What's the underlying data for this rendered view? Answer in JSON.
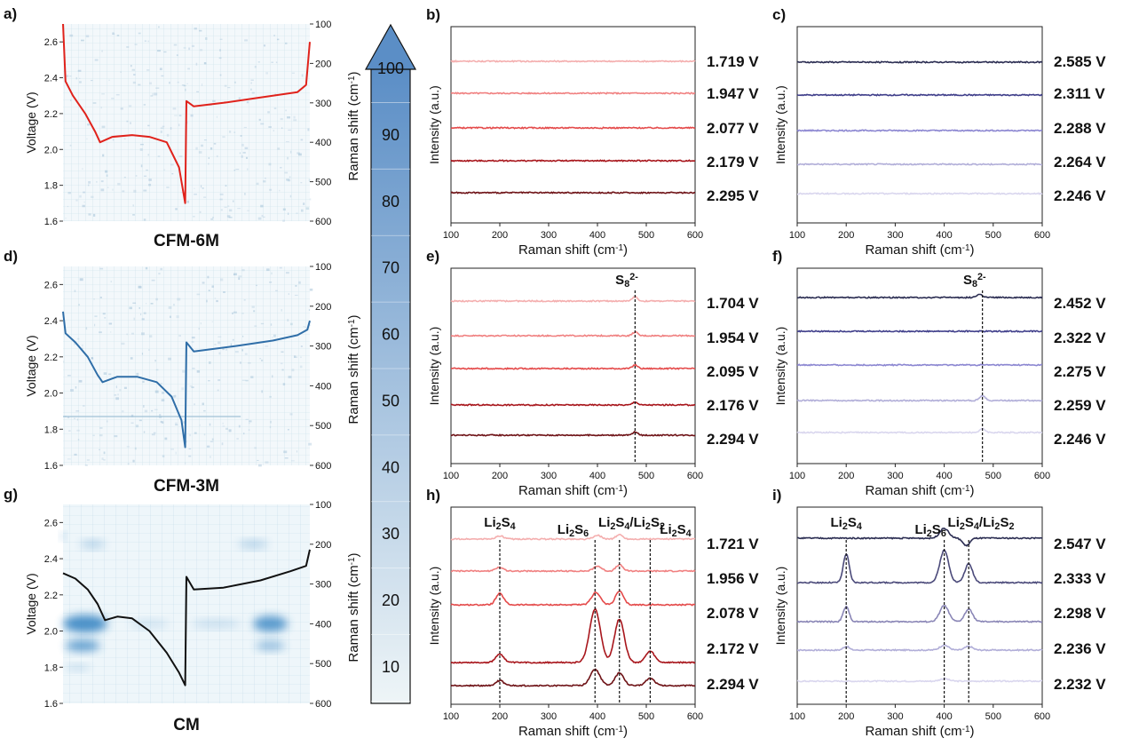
{
  "chart_data": [
    {
      "id": "a",
      "type": "heatmap+line",
      "panel_label": "a)",
      "caption": "CFM-6M",
      "ylabel": "Voltage (V)",
      "ylim": [
        1.6,
        2.7
      ],
      "yticks": [
        "1.6",
        "1.8",
        "2.0",
        "2.2",
        "2.4",
        "2.6"
      ],
      "y2label": "Raman shift (cm⁻¹)",
      "y2lim": [
        100,
        600
      ],
      "y2ticks": [
        "100",
        "200",
        "300",
        "400",
        "500",
        "600"
      ],
      "curve_color": "#e0221b",
      "voltage_curve": [
        [
          0,
          2.7
        ],
        [
          0.01,
          2.38
        ],
        [
          0.04,
          2.3
        ],
        [
          0.09,
          2.2
        ],
        [
          0.13,
          2.1
        ],
        [
          0.15,
          2.04
        ],
        [
          0.2,
          2.07
        ],
        [
          0.28,
          2.08
        ],
        [
          0.35,
          2.07
        ],
        [
          0.42,
          2.04
        ],
        [
          0.47,
          1.9
        ],
        [
          0.495,
          1.7
        ],
        [
          0.5,
          2.27
        ],
        [
          0.53,
          2.24
        ],
        [
          0.65,
          2.26
        ],
        [
          0.8,
          2.29
        ],
        [
          0.95,
          2.32
        ],
        [
          0.985,
          2.36
        ],
        [
          1.0,
          2.6
        ]
      ],
      "heat_spots": []
    },
    {
      "id": "d",
      "type": "heatmap+line",
      "panel_label": "d)",
      "caption": "CFM-3M",
      "ylabel": "Voltage (V)",
      "ylim": [
        1.6,
        2.7
      ],
      "yticks": [
        "1.6",
        "1.8",
        "2.0",
        "2.2",
        "2.4",
        "2.6"
      ],
      "y2label": "Raman shift (cm⁻¹)",
      "y2lim": [
        100,
        600
      ],
      "y2ticks": [
        "100",
        "200",
        "300",
        "400",
        "500",
        "600"
      ],
      "curve_color": "#2f6ea8",
      "voltage_curve": [
        [
          0,
          2.45
        ],
        [
          0.01,
          2.33
        ],
        [
          0.05,
          2.28
        ],
        [
          0.1,
          2.2
        ],
        [
          0.14,
          2.1
        ],
        [
          0.16,
          2.06
        ],
        [
          0.22,
          2.09
        ],
        [
          0.3,
          2.09
        ],
        [
          0.38,
          2.06
        ],
        [
          0.44,
          1.98
        ],
        [
          0.48,
          1.85
        ],
        [
          0.495,
          1.7
        ],
        [
          0.5,
          2.28
        ],
        [
          0.53,
          2.23
        ],
        [
          0.7,
          2.26
        ],
        [
          0.85,
          2.29
        ],
        [
          0.95,
          2.32
        ],
        [
          0.99,
          2.35
        ],
        [
          1.0,
          2.4
        ]
      ],
      "heat_spots": []
    },
    {
      "id": "g",
      "type": "heatmap+line",
      "panel_label": "g)",
      "caption": "CM",
      "ylabel": "Voltage (V)",
      "ylim": [
        1.6,
        2.7
      ],
      "yticks": [
        "1.6",
        "1.8",
        "2.0",
        "2.2",
        "2.4",
        "2.6"
      ],
      "y2label": "Raman shift (cm⁻¹)",
      "y2lim": [
        100,
        600
      ],
      "y2ticks": [
        "100",
        "200",
        "300",
        "400",
        "500",
        "600"
      ],
      "curve_color": "#111111",
      "voltage_curve": [
        [
          0,
          2.32
        ],
        [
          0.05,
          2.29
        ],
        [
          0.1,
          2.23
        ],
        [
          0.14,
          2.15
        ],
        [
          0.17,
          2.06
        ],
        [
          0.22,
          2.08
        ],
        [
          0.28,
          2.07
        ],
        [
          0.35,
          2.0
        ],
        [
          0.42,
          1.88
        ],
        [
          0.47,
          1.77
        ],
        [
          0.495,
          1.7
        ],
        [
          0.5,
          2.3
        ],
        [
          0.53,
          2.23
        ],
        [
          0.65,
          2.24
        ],
        [
          0.8,
          2.28
        ],
        [
          0.92,
          2.33
        ],
        [
          0.985,
          2.36
        ],
        [
          1.0,
          2.45
        ]
      ],
      "heat_spots": [
        [
          0.09,
          400,
          0.09,
          22,
          1.0
        ],
        [
          0.08,
          455,
          0.07,
          14,
          0.85
        ],
        [
          0.84,
          400,
          0.07,
          20,
          0.9
        ],
        [
          0.84,
          455,
          0.06,
          12,
          0.55
        ],
        [
          0.12,
          200,
          0.05,
          10,
          0.35
        ],
        [
          0.77,
          200,
          0.06,
          10,
          0.35
        ],
        [
          0.0,
          180,
          0.01,
          8,
          0.5
        ],
        [
          0.06,
          510,
          0.05,
          8,
          0.25
        ],
        [
          0.35,
          400,
          0.08,
          10,
          0.2
        ],
        [
          0.62,
          400,
          0.1,
          10,
          0.25
        ]
      ]
    },
    {
      "id": "arrow",
      "type": "colorbar",
      "values": [
        10,
        20,
        30,
        40,
        50,
        60,
        70,
        80,
        90,
        100
      ],
      "color_low": "#eef5f7",
      "color_high": "#5b8ec6"
    },
    {
      "id": "b",
      "type": "line",
      "panel_label": "b)",
      "xlabel": "Raman shift (cm⁻¹)",
      "ylabel": "Intensity (a.u.)",
      "xlim": [
        100,
        600
      ],
      "xticks": [
        "100",
        "200",
        "300",
        "400",
        "500",
        "600"
      ],
      "series": [
        {
          "name": "1.719 V",
          "color": "#f4aeae",
          "peaks": []
        },
        {
          "name": "1.947 V",
          "color": "#f08080",
          "peaks": []
        },
        {
          "name": "2.077 V",
          "color": "#e44a4a",
          "peaks": []
        },
        {
          "name": "2.179 V",
          "color": "#a8161c",
          "peaks": []
        },
        {
          "name": "2.295 V",
          "color": "#6e1216",
          "peaks": []
        }
      ],
      "annotations": []
    },
    {
      "id": "c",
      "type": "line",
      "panel_label": "c)",
      "xlabel": "Raman shift (cm⁻¹)",
      "ylabel": "Intensity (a.u.)",
      "xlim": [
        100,
        600
      ],
      "xticks": [
        "100",
        "200",
        "300",
        "400",
        "500",
        "600"
      ],
      "series": [
        {
          "name": "2.585 V",
          "color": "#2b2d52",
          "peaks": []
        },
        {
          "name": "2.311 V",
          "color": "#3f3e8a",
          "peaks": []
        },
        {
          "name": "2.288 V",
          "color": "#8b86d1",
          "peaks": []
        },
        {
          "name": "2.264 V",
          "color": "#b1aed8",
          "peaks": []
        },
        {
          "name": "2.246 V",
          "color": "#d9d6ee",
          "peaks": []
        }
      ],
      "annotations": []
    },
    {
      "id": "e",
      "type": "line",
      "panel_label": "e)",
      "xlabel": "Raman shift (cm⁻¹)",
      "ylabel": "Intensity (a.u.)",
      "xlim": [
        100,
        600
      ],
      "xticks": [
        "100",
        "200",
        "300",
        "400",
        "500",
        "600"
      ],
      "series": [
        {
          "name": "1.704 V",
          "color": "#f4aeae",
          "peaks": [
            [
              477,
              0.35,
              5
            ]
          ]
        },
        {
          "name": "1.954 V",
          "color": "#f08080",
          "peaks": [
            [
              477,
              0.3,
              5
            ]
          ]
        },
        {
          "name": "2.095 V",
          "color": "#e44a4a",
          "peaks": [
            [
              477,
              0.3,
              5
            ]
          ]
        },
        {
          "name": "2.176 V",
          "color": "#a8161c",
          "peaks": [
            [
              477,
              0.25,
              5
            ]
          ]
        },
        {
          "name": "2.294 V",
          "color": "#6e1216",
          "peaks": [
            [
              477,
              0.25,
              5
            ]
          ]
        }
      ],
      "annotations": [
        {
          "x": 477,
          "label": "S₈²⁻",
          "label_at": 460
        }
      ]
    },
    {
      "id": "f",
      "type": "line",
      "panel_label": "f)",
      "xlabel": "Raman shift (cm⁻¹)",
      "ylabel": "Intensity (a.u.)",
      "xlim": [
        100,
        600
      ],
      "xticks": [
        "100",
        "200",
        "300",
        "400",
        "500",
        "600"
      ],
      "series": [
        {
          "name": "2.452 V",
          "color": "#2b2d52",
          "peaks": [
            [
              472,
              0.25,
              6
            ]
          ]
        },
        {
          "name": "2.322 V",
          "color": "#3f3e8a",
          "peaks": []
        },
        {
          "name": "2.275 V",
          "color": "#8b86d1",
          "peaks": []
        },
        {
          "name": "2.259 V",
          "color": "#b1aed8",
          "peaks": [
            [
              478,
              0.4,
              6
            ]
          ]
        },
        {
          "name": "2.246 V",
          "color": "#d9d6ee",
          "peaks": [
            [
              478,
              0.3,
              6
            ]
          ]
        }
      ],
      "annotations": [
        {
          "x": 478,
          "label": "S₈²⁻",
          "label_at": 462
        }
      ]
    },
    {
      "id": "h",
      "type": "line",
      "panel_label": "h)",
      "xlabel": "Raman shift (cm⁻¹)",
      "ylabel": "Intensity (a.u.)",
      "xlim": [
        100,
        600
      ],
      "xticks": [
        "100",
        "200",
        "300",
        "400",
        "500",
        "600"
      ],
      "series": [
        {
          "name": "1.721 V",
          "color": "#f4aeae",
          "peaks": [
            [
              200,
              0.25,
              8
            ],
            [
              400,
              0.3,
              8
            ],
            [
              445,
              0.35,
              7
            ]
          ]
        },
        {
          "name": "1.956 V",
          "color": "#f08080",
          "peaks": [
            [
              200,
              0.3,
              8
            ],
            [
              400,
              0.4,
              8
            ],
            [
              445,
              0.5,
              7
            ]
          ]
        },
        {
          "name": "2.078 V",
          "color": "#e44a4a",
          "peaks": [
            [
              200,
              0.9,
              8
            ],
            [
              397,
              1.0,
              9
            ],
            [
              445,
              1.1,
              8
            ]
          ]
        },
        {
          "name": "2.172 V",
          "color": "#a8161c",
          "peaks": [
            [
              200,
              0.7,
              8
            ],
            [
              395,
              4.3,
              11
            ],
            [
              445,
              3.5,
              10
            ],
            [
              508,
              0.9,
              9
            ]
          ]
        },
        {
          "name": "2.294 V",
          "color": "#6e1216",
          "peaks": [
            [
              200,
              0.4,
              8
            ],
            [
              395,
              1.3,
              10
            ],
            [
              445,
              1.0,
              9
            ],
            [
              508,
              0.6,
              9
            ]
          ]
        }
      ],
      "annotations": [
        {
          "x": 200,
          "label": "Li₂S₄",
          "label_at": 200
        },
        {
          "x": 395,
          "label": "Li₂S₆",
          "label_at": 350
        },
        {
          "x": 445,
          "label": "Li₂S₄/Li₂S₂",
          "label_at": 470
        },
        {
          "x": 508,
          "label": "Li₂S₄",
          "label_at": 560
        }
      ]
    },
    {
      "id": "i",
      "type": "line",
      "panel_label": "i)",
      "xlabel": "Raman shift (cm⁻¹)",
      "ylabel": "Intensity (a.u.)",
      "xlim": [
        100,
        600
      ],
      "xticks": [
        "100",
        "200",
        "300",
        "400",
        "500",
        "600"
      ],
      "series": [
        {
          "name": "2.547 V",
          "color": "#2b2d52",
          "peaks": [
            [
              400,
              0.8,
              9
            ],
            [
              445,
              -0.6,
              7
            ]
          ]
        },
        {
          "name": "2.333 V",
          "color": "#4b4a7a",
          "peaks": [
            [
              200,
              2.3,
              6
            ],
            [
              400,
              2.6,
              9
            ],
            [
              450,
              1.5,
              8
            ]
          ]
        },
        {
          "name": "2.298 V",
          "color": "#8a86b6",
          "peaks": [
            [
              200,
              1.2,
              6
            ],
            [
              400,
              1.3,
              9
            ],
            [
              450,
              1.0,
              8
            ]
          ]
        },
        {
          "name": "2.236 V",
          "color": "#b1aed8",
          "peaks": [
            [
              200,
              0.3,
              6
            ],
            [
              400,
              0.4,
              9
            ],
            [
              450,
              0.3,
              8
            ]
          ]
        },
        {
          "name": "2.232 V",
          "color": "#d9d6ee",
          "peaks": [
            [
              400,
              0.2,
              9
            ]
          ]
        }
      ],
      "annotations": [
        {
          "x": 200,
          "label": "Li₂S₄",
          "label_at": 200
        },
        {
          "x": 400,
          "label": "Li₂S₆",
          "label_at": 372
        },
        {
          "x": 450,
          "label": "Li₂S₄/Li₂S₂",
          "label_at": 475
        }
      ]
    }
  ]
}
